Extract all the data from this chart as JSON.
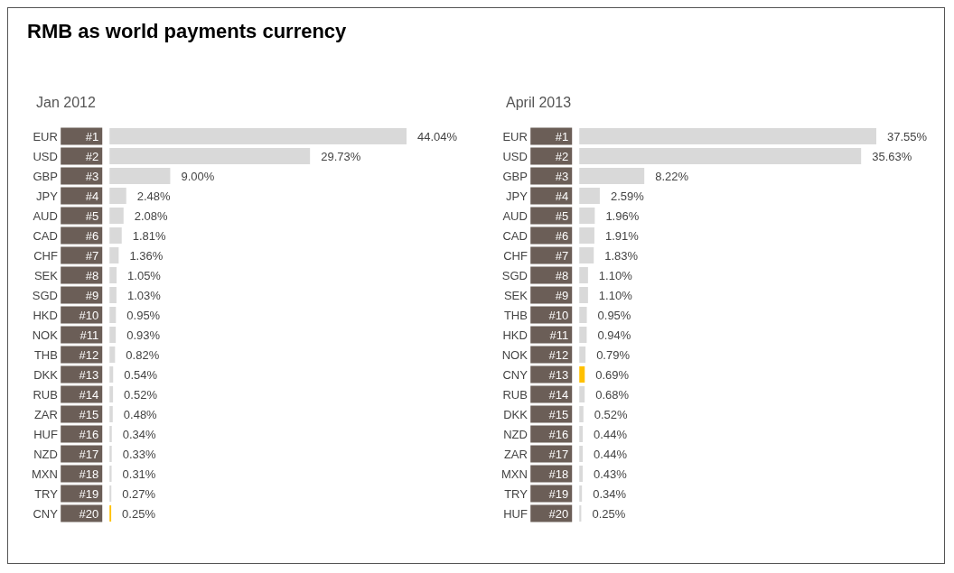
{
  "chart_data": [
    {
      "type": "bar",
      "orientation": "horizontal",
      "title": "RMB as world payments currency",
      "subtitle": "Jan 2012",
      "categories": [
        "EUR",
        "USD",
        "GBP",
        "JPY",
        "AUD",
        "CAD",
        "CHF",
        "SEK",
        "SGD",
        "HKD",
        "NOK",
        "THB",
        "DKK",
        "RUB",
        "ZAR",
        "HUF",
        "NZD",
        "MXN",
        "TRY",
        "CNY"
      ],
      "values": [
        44.04,
        29.73,
        9.0,
        2.48,
        2.08,
        1.81,
        1.36,
        1.05,
        1.03,
        0.95,
        0.93,
        0.82,
        0.54,
        0.52,
        0.48,
        0.34,
        0.33,
        0.31,
        0.27,
        0.25
      ],
      "colors": [
        "#d9d9d9",
        "#d9d9d9",
        "#d9d9d9",
        "#d9d9d9",
        "#d9d9d9",
        "#d9d9d9",
        "#d9d9d9",
        "#d9d9d9",
        "#d9d9d9",
        "#d9d9d9",
        "#d9d9d9",
        "#d9d9d9",
        "#d9d9d9",
        "#d9d9d9",
        "#d9d9d9",
        "#d9d9d9",
        "#d9d9d9",
        "#d9d9d9",
        "#d9d9d9",
        "#ffc000"
      ],
      "value_labels": [
        "44.04%",
        "29.73%",
        "9.00%",
        "2.48%",
        "2.08%",
        "1.81%",
        "1.36%",
        "1.05%",
        "1.03%",
        "0.95%",
        "0.93%",
        "0.82%",
        "0.54%",
        "0.52%",
        "0.48%",
        "0.34%",
        "0.33%",
        "0.31%",
        "0.27%",
        "0.25%"
      ],
      "annotations": [
        "#1",
        "#2",
        "#3",
        "#4",
        "#5",
        "#6",
        "#7",
        "#8",
        "#9",
        "#10",
        "#11",
        "#12",
        "#13",
        "#14",
        "#15",
        "#16",
        "#17",
        "#18",
        "#19",
        "#20"
      ]
    },
    {
      "type": "bar",
      "orientation": "horizontal",
      "subtitle": "April 2013",
      "categories": [
        "EUR",
        "USD",
        "GBP",
        "JPY",
        "AUD",
        "CAD",
        "CHF",
        "SGD",
        "SEK",
        "THB",
        "HKD",
        "NOK",
        "CNY",
        "RUB",
        "DKK",
        "NZD",
        "ZAR",
        "MXN",
        "TRY",
        "HUF"
      ],
      "values": [
        37.55,
        35.63,
        8.22,
        2.59,
        1.96,
        1.91,
        1.83,
        1.1,
        1.1,
        0.95,
        0.94,
        0.79,
        0.69,
        0.68,
        0.52,
        0.44,
        0.44,
        0.43,
        0.34,
        0.25
      ],
      "colors": [
        "#d9d9d9",
        "#d9d9d9",
        "#d9d9d9",
        "#d9d9d9",
        "#d9d9d9",
        "#d9d9d9",
        "#d9d9d9",
        "#d9d9d9",
        "#d9d9d9",
        "#d9d9d9",
        "#d9d9d9",
        "#d9d9d9",
        "#ffc000",
        "#d9d9d9",
        "#d9d9d9",
        "#d9d9d9",
        "#d9d9d9",
        "#d9d9d9",
        "#d9d9d9",
        "#d9d9d9"
      ],
      "value_labels": [
        "37.55%",
        "35.63%",
        "8.22%",
        "2.59%",
        "1.96%",
        "1.91%",
        "1.83%",
        "1.10%",
        "1.10%",
        "0.95%",
        "0.94%",
        "0.79%",
        "0.69%",
        "0.68%",
        "0.52%",
        "0.44%",
        "0.44%",
        "0.43%",
        "0.34%",
        "0.25%"
      ],
      "annotations": [
        "#1",
        "#2",
        "#3",
        "#4",
        "#5",
        "#6",
        "#7",
        "#8",
        "#9",
        "#10",
        "#11",
        "#12",
        "#13",
        "#14",
        "#15",
        "#16",
        "#17",
        "#18",
        "#19",
        "#20"
      ]
    }
  ]
}
